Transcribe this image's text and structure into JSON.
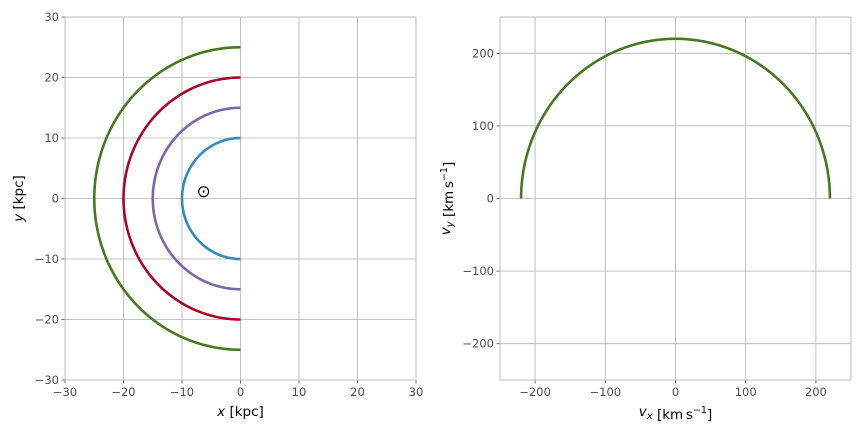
{
  "chart_data": [
    {
      "type": "line",
      "xlabel": "x [kpc]",
      "ylabel": "y [kpc]",
      "xlim": [
        -30,
        30
      ],
      "ylim": [
        -30,
        30
      ],
      "xticks": [
        "−30",
        "−20",
        "−10",
        "0",
        "10",
        "20",
        "30"
      ],
      "yticks": [
        "−30",
        "−20",
        "−10",
        "0",
        "10",
        "20",
        "30"
      ],
      "grid": true,
      "series": [
        {
          "radius_kpc": 10,
          "x_range": [
            -10,
            0
          ],
          "y_range": [
            -10,
            10
          ],
          "color": "#348abd"
        },
        {
          "radius_kpc": 15,
          "x_range": [
            -15,
            0
          ],
          "y_range": [
            -15,
            15
          ],
          "color": "#7a68a6"
        },
        {
          "radius_kpc": 20,
          "x_range": [
            -20,
            0
          ],
          "y_range": [
            -20,
            20
          ],
          "color": "#a60628"
        },
        {
          "radius_kpc": 25,
          "x_range": [
            -25,
            0
          ],
          "y_range": [
            -25,
            25
          ],
          "color": "#467821"
        }
      ],
      "annotations": [
        {
          "symbol": "⊙",
          "x": -6.3,
          "y": 1.2
        }
      ]
    },
    {
      "type": "line",
      "xlabel": "v_x [km s^-1]",
      "ylabel": "v_y [km s^-1]",
      "xlim": [
        -250,
        250
      ],
      "ylim": [
        -250,
        250
      ],
      "xticks": [
        "−200",
        "−100",
        "0",
        "100",
        "200"
      ],
      "yticks": [
        "−200",
        "−100",
        "0",
        "100",
        "200"
      ],
      "grid": true,
      "series": [
        {
          "speed_kms": 220,
          "x_range": [
            -220,
            220
          ],
          "y_range": [
            0,
            220
          ],
          "color": "#467821"
        }
      ]
    }
  ]
}
